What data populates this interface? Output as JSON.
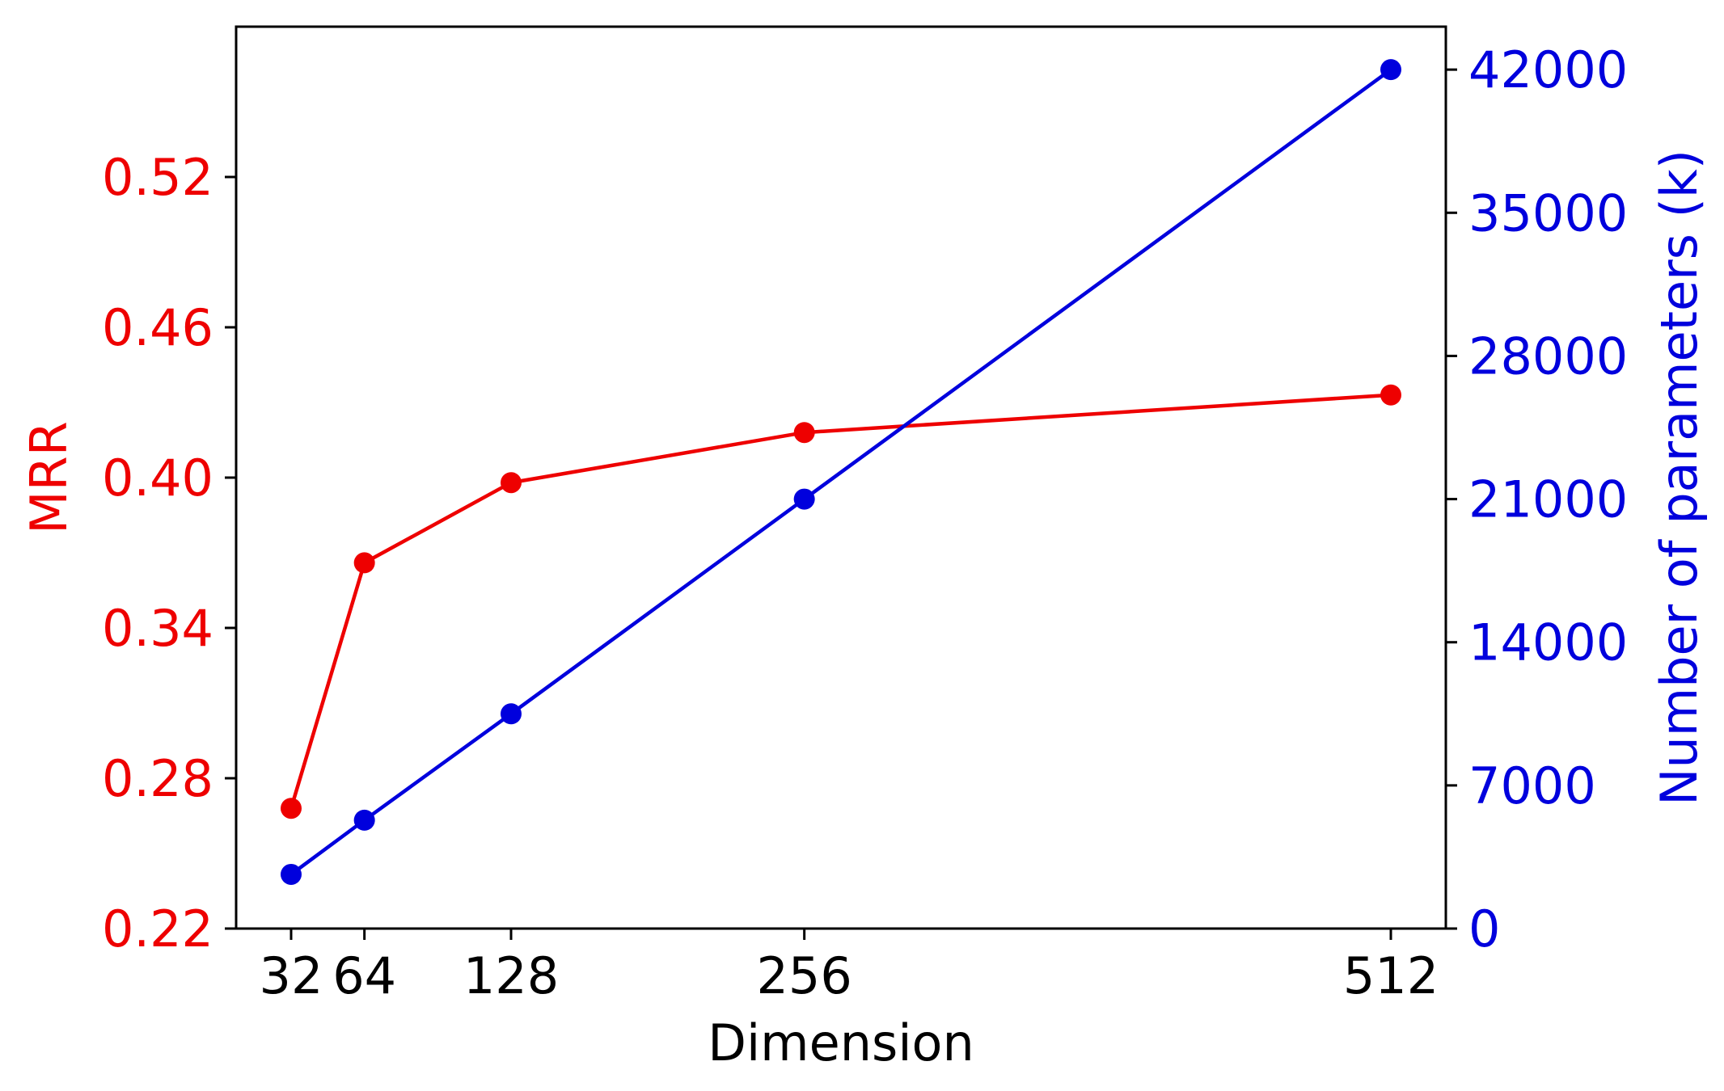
{
  "chart_data": {
    "type": "line",
    "xlabel": "Dimension",
    "ylabel_left": "MRR",
    "ylabel_right": "Number of parameters (k)",
    "x": [
      32,
      64,
      128,
      256,
      512
    ],
    "x_ticks": [
      "32",
      "64",
      "128",
      "256",
      "512"
    ],
    "xlim": [
      8,
      536
    ],
    "left_axis": {
      "ylim": [
        0.22,
        0.58
      ],
      "ticks": [
        0.22,
        0.28,
        0.34,
        0.4,
        0.46,
        0.52
      ],
      "tick_labels": [
        "0.22",
        "0.28",
        "0.34",
        "0.40",
        "0.46",
        "0.52"
      ],
      "color": "#ee0000"
    },
    "right_axis": {
      "ylim": [
        0,
        44100
      ],
      "ticks": [
        0,
        7000,
        14000,
        21000,
        28000,
        35000,
        42000
      ],
      "tick_labels": [
        "0",
        "7000",
        "14000",
        "21000",
        "28000",
        "35000",
        "42000"
      ],
      "color": "#0000dd"
    },
    "series": [
      {
        "axis": "left",
        "color": "#ee0000",
        "values": [
          0.268,
          0.366,
          0.398,
          0.418,
          0.433
        ]
      },
      {
        "axis": "right",
        "color": "#0000dd",
        "values": [
          2650,
          5300,
          10500,
          21000,
          42000
        ]
      }
    ],
    "grid": false,
    "legend": "none"
  }
}
